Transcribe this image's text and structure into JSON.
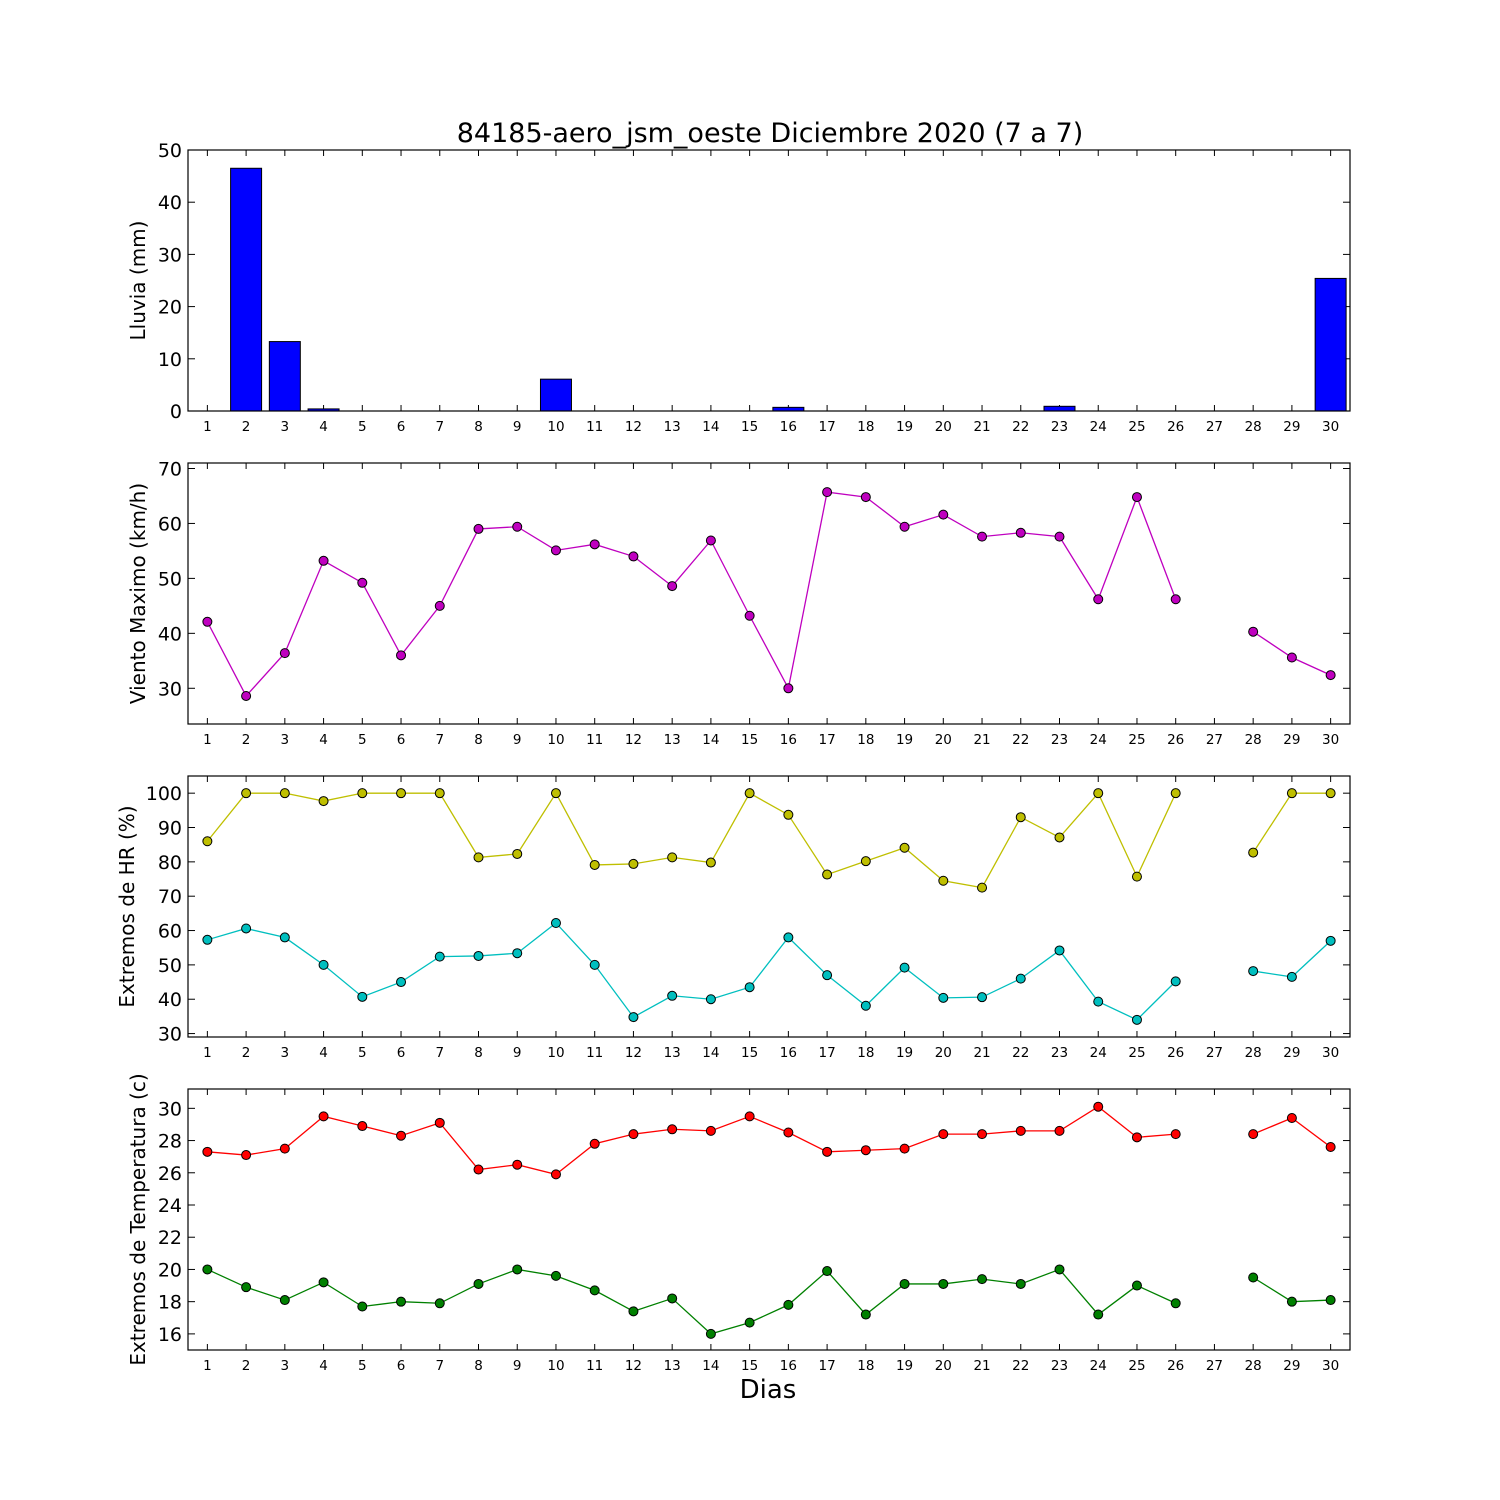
{
  "title": "84185-aero_jsm_oeste Diciembre 2020  (7 a 7)",
  "xlabel": "Dias",
  "chart_data": [
    {
      "type": "bar",
      "ylabel": "Lluvia (mm)",
      "ylim": [
        0,
        50
      ],
      "yticks": [
        0,
        10,
        20,
        30,
        40,
        50
      ],
      "x": [
        1,
        2,
        3,
        4,
        5,
        6,
        7,
        8,
        9,
        10,
        11,
        12,
        13,
        14,
        15,
        16,
        17,
        18,
        19,
        20,
        21,
        22,
        23,
        24,
        25,
        26,
        27,
        28,
        29,
        30
      ],
      "values": [
        0,
        46.5,
        13.3,
        0.4,
        0,
        0,
        0,
        0,
        0,
        6.1,
        0,
        0,
        0,
        0,
        0,
        0.7,
        0,
        0,
        0,
        0,
        0,
        0,
        0.9,
        0,
        0,
        0,
        0,
        0,
        0,
        25.4
      ],
      "color": "#0000ff"
    },
    {
      "type": "line",
      "ylabel": "Viento Maximo (km/h)",
      "ylim": [
        23.5,
        71
      ],
      "yticks": [
        30,
        40,
        50,
        60,
        70
      ],
      "x": [
        1,
        2,
        3,
        4,
        5,
        6,
        7,
        8,
        9,
        10,
        11,
        12,
        13,
        14,
        15,
        16,
        17,
        18,
        19,
        20,
        21,
        22,
        23,
        24,
        25,
        26,
        27,
        28,
        29,
        30
      ],
      "series": [
        {
          "values": [
            42.1,
            28.6,
            36.4,
            53.2,
            49.2,
            36.0,
            45.0,
            59.0,
            59.4,
            55.1,
            56.2,
            54.0,
            48.6,
            56.9,
            43.2,
            30.0,
            65.7,
            64.8,
            59.4,
            61.6,
            57.6,
            58.3,
            57.6,
            46.2,
            64.8,
            46.2,
            null,
            40.3,
            35.6,
            32.4
          ],
          "color": "#bf00bf"
        }
      ]
    },
    {
      "type": "line",
      "ylabel": "Extremos de HR (%)",
      "ylim": [
        29,
        105
      ],
      "yticks": [
        30,
        40,
        50,
        60,
        70,
        80,
        90,
        100
      ],
      "x": [
        1,
        2,
        3,
        4,
        5,
        6,
        7,
        8,
        9,
        10,
        11,
        12,
        13,
        14,
        15,
        16,
        17,
        18,
        19,
        20,
        21,
        22,
        23,
        24,
        25,
        26,
        27,
        28,
        29,
        30
      ],
      "series": [
        {
          "values": [
            86,
            100,
            100,
            97.7,
            100,
            100,
            100,
            81.3,
            82.3,
            100,
            79.1,
            79.4,
            81.3,
            79.8,
            100,
            93.7,
            76.3,
            80.2,
            84.1,
            74.5,
            72.5,
            93.0,
            87.1,
            100,
            75.7,
            100,
            null,
            82.7,
            100,
            100
          ],
          "color": "#bfbf00"
        },
        {
          "values": [
            57.3,
            60.6,
            58.0,
            50.0,
            40.7,
            45.0,
            52.4,
            52.6,
            53.4,
            62.2,
            50.0,
            34.8,
            41.0,
            40.0,
            43.5,
            58.0,
            47.0,
            38.1,
            49.2,
            40.4,
            40.6,
            46.0,
            54.2,
            39.3,
            34.0,
            45.2,
            null,
            48.2,
            46.5,
            57.0
          ],
          "color": "#00bfbf"
        }
      ]
    },
    {
      "type": "line",
      "ylabel": "Extremos de Temperatura (c)",
      "ylim": [
        15,
        31.2
      ],
      "yticks": [
        16,
        18,
        20,
        22,
        24,
        26,
        28,
        30
      ],
      "x": [
        1,
        2,
        3,
        4,
        5,
        6,
        7,
        8,
        9,
        10,
        11,
        12,
        13,
        14,
        15,
        16,
        17,
        18,
        19,
        20,
        21,
        22,
        23,
        24,
        25,
        26,
        27,
        28,
        29,
        30
      ],
      "series": [
        {
          "values": [
            27.3,
            27.1,
            27.5,
            29.5,
            28.9,
            28.3,
            29.1,
            26.2,
            26.5,
            25.9,
            27.8,
            28.4,
            28.7,
            28.6,
            29.5,
            28.5,
            27.3,
            27.4,
            27.5,
            28.4,
            28.4,
            28.6,
            28.6,
            30.1,
            28.2,
            28.4,
            null,
            28.4,
            29.4,
            27.6
          ],
          "color": "#ff0000"
        },
        {
          "values": [
            20.0,
            18.9,
            18.1,
            19.2,
            17.7,
            18.0,
            17.9,
            19.1,
            20.0,
            19.6,
            18.7,
            17.4,
            18.2,
            16.0,
            16.7,
            17.8,
            19.9,
            17.2,
            19.1,
            19.1,
            19.4,
            19.1,
            20.0,
            17.2,
            19.0,
            17.9,
            null,
            19.5,
            18.0,
            18.1
          ],
          "color": "#008000"
        }
      ]
    }
  ]
}
